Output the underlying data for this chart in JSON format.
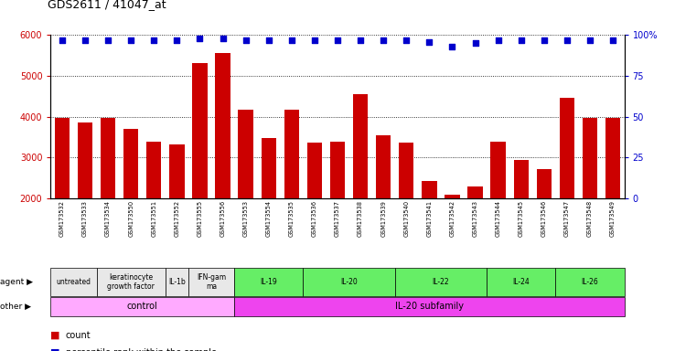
{
  "title": "GDS2611 / 41047_at",
  "samples": [
    "GSM173532",
    "GSM173533",
    "GSM173534",
    "GSM173550",
    "GSM173551",
    "GSM173552",
    "GSM173555",
    "GSM173556",
    "GSM173553",
    "GSM173554",
    "GSM173535",
    "GSM173536",
    "GSM173537",
    "GSM173538",
    "GSM173539",
    "GSM173540",
    "GSM173541",
    "GSM173542",
    "GSM173543",
    "GSM173544",
    "GSM173545",
    "GSM173546",
    "GSM173547",
    "GSM173548",
    "GSM173549"
  ],
  "counts": [
    3980,
    3850,
    3960,
    3700,
    3380,
    3310,
    5310,
    5560,
    4170,
    3480,
    4170,
    3360,
    3380,
    4560,
    3550,
    3360,
    2430,
    2090,
    2280,
    3380,
    2940,
    2710,
    4460,
    3980,
    3980
  ],
  "percentile_ranks": [
    97,
    97,
    97,
    97,
    97,
    97,
    98,
    98,
    97,
    97,
    97,
    97,
    97,
    97,
    97,
    97,
    96,
    93,
    95,
    97,
    97,
    97,
    97,
    97,
    97
  ],
  "bar_color": "#cc0000",
  "dot_color": "#0000cc",
  "ylim_left": [
    2000,
    6000
  ],
  "ylim_right": [
    0,
    100
  ],
  "yticks_left": [
    2000,
    3000,
    4000,
    5000,
    6000
  ],
  "yticks_right": [
    0,
    25,
    50,
    75,
    100
  ],
  "agent_groups": [
    {
      "label": "untreated",
      "start": 0,
      "end": 1,
      "color": "#e8e8e8"
    },
    {
      "label": "keratinocyte\ngrowth factor",
      "start": 2,
      "end": 4,
      "color": "#e8e8e8"
    },
    {
      "label": "IL-1b",
      "start": 5,
      "end": 5,
      "color": "#e8e8e8"
    },
    {
      "label": "IFN-gam\nma",
      "start": 6,
      "end": 7,
      "color": "#e8e8e8"
    },
    {
      "label": "IL-19",
      "start": 8,
      "end": 10,
      "color": "#66ee66"
    },
    {
      "label": "IL-20",
      "start": 11,
      "end": 14,
      "color": "#66ee66"
    },
    {
      "label": "IL-22",
      "start": 15,
      "end": 18,
      "color": "#66ee66"
    },
    {
      "label": "IL-24",
      "start": 19,
      "end": 21,
      "color": "#66ee66"
    },
    {
      "label": "IL-26",
      "start": 22,
      "end": 24,
      "color": "#66ee66"
    }
  ],
  "other_groups": [
    {
      "label": "control",
      "start": 0,
      "end": 7,
      "color": "#ffaaff"
    },
    {
      "label": "IL-20 subfamily",
      "start": 8,
      "end": 24,
      "color": "#ee44ee"
    }
  ]
}
